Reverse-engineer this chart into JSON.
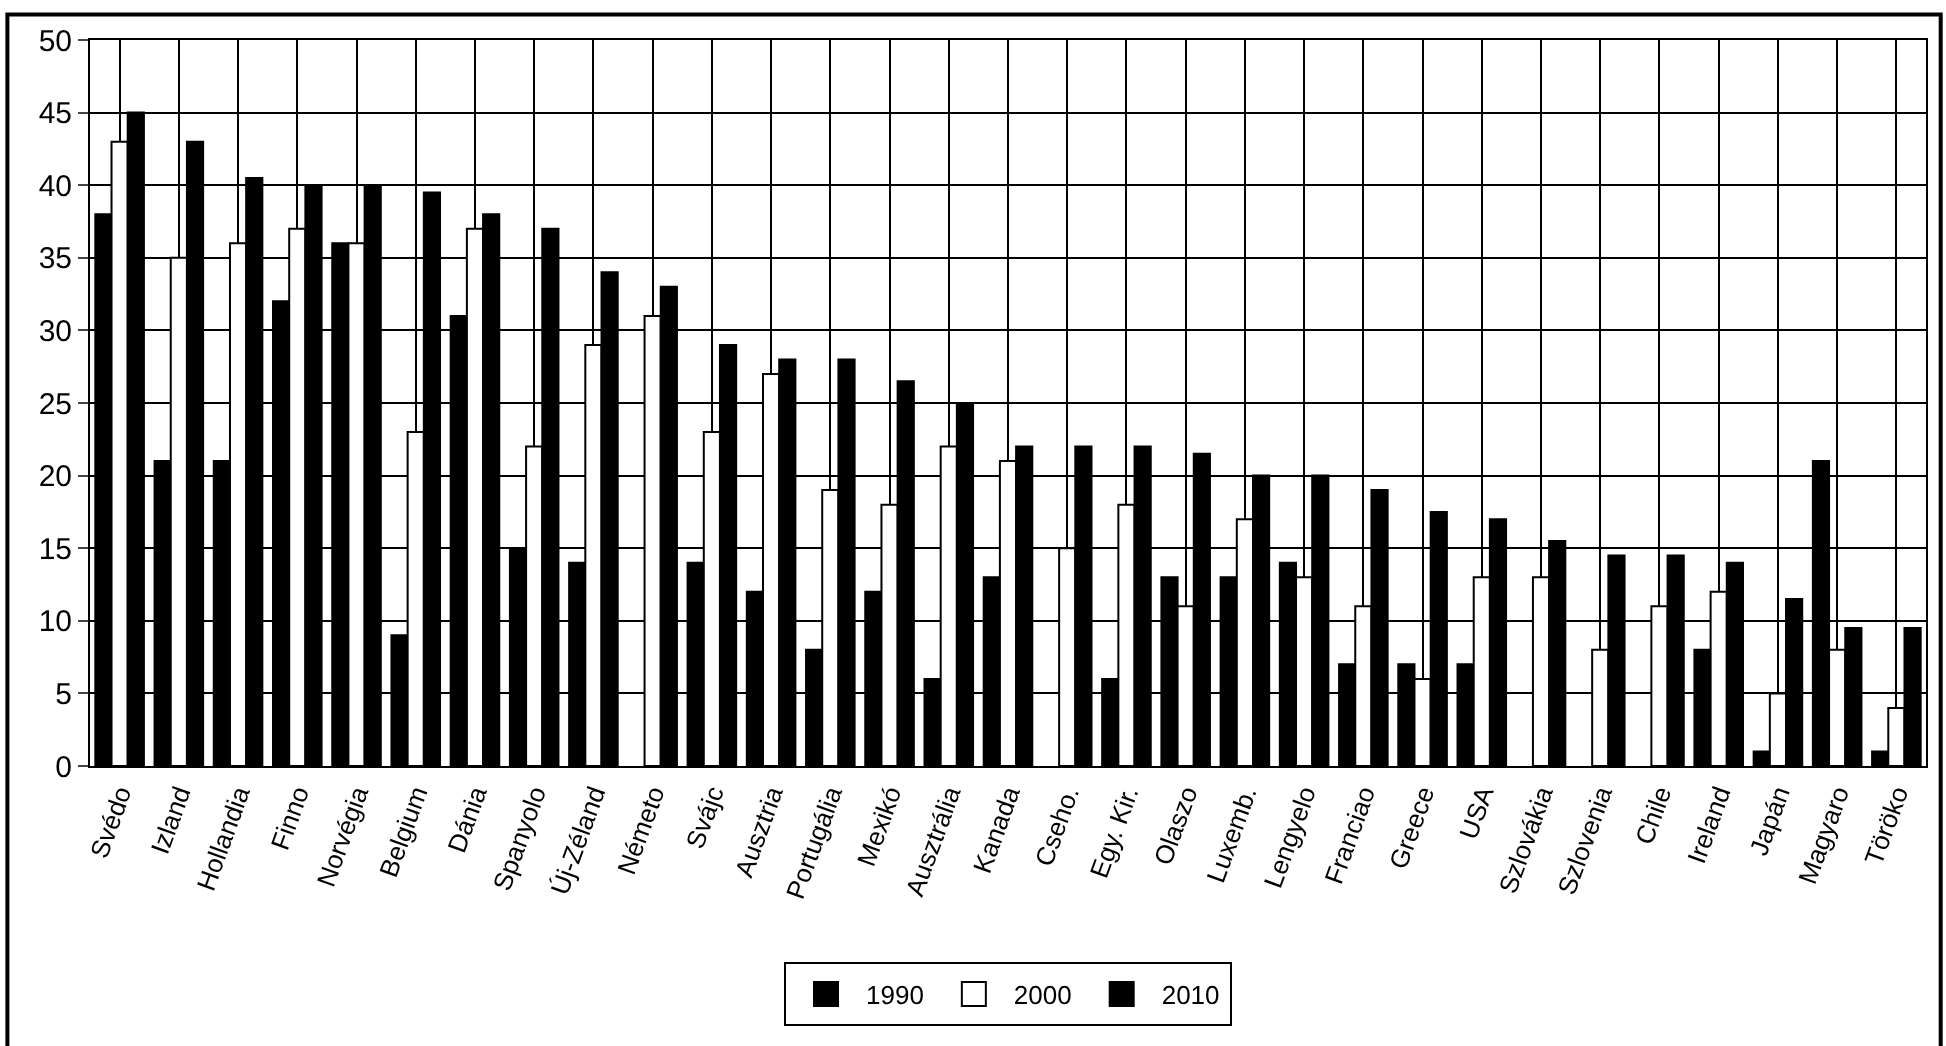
{
  "chart_data": {
    "type": "bar",
    "categories": [
      "Svédo",
      "Izland",
      "Hollandia",
      "Finno",
      "Norvégia",
      "Belgium",
      "Dánia",
      "Spanyolo",
      "Új-Zéland",
      "Németo",
      "Svájc",
      "Ausztria",
      "Portugália",
      "Mexikó",
      "Ausztrália",
      "Kanada",
      "Cseho.",
      "Egy. Kir.",
      "Olaszo",
      "Luxemb.",
      "Lengyelo",
      "Franciao",
      "Greece",
      "USA",
      "Szlovákia",
      "Szlovenia",
      "Chile",
      "Ireland",
      "Japán",
      "Magyaro",
      "Töröko"
    ],
    "series": [
      {
        "name": "1990",
        "color": "#000000",
        "values": [
          38,
          21,
          21,
          32,
          36,
          9,
          31,
          15,
          14,
          null,
          14,
          12,
          8,
          12,
          6,
          13,
          null,
          6,
          13,
          13,
          14,
          7,
          7,
          7,
          null,
          null,
          null,
          8,
          1,
          21,
          1
        ]
      },
      {
        "name": "2000",
        "color": "#ffffff",
        "values": [
          43,
          35,
          36,
          37,
          36,
          23,
          37,
          22,
          29,
          31,
          23,
          27,
          19,
          18,
          22,
          21,
          15,
          18,
          11,
          17,
          13,
          11,
          6,
          13,
          13,
          8,
          11,
          12,
          5,
          8,
          4
        ]
      },
      {
        "name": "2010",
        "color": "#000000",
        "values": [
          45,
          43,
          40.5,
          40,
          40,
          39.5,
          38,
          37,
          34,
          33,
          29,
          28,
          28,
          26.5,
          25,
          22,
          22,
          22,
          21.5,
          20,
          20,
          19,
          17.5,
          17,
          15.5,
          14.5,
          14.5,
          14,
          11.5,
          9.5,
          9.5
        ]
      }
    ],
    "ylim": [
      0,
      50
    ],
    "yticks": [
      0,
      5,
      10,
      15,
      20,
      25,
      30,
      35,
      40,
      45,
      50
    ],
    "grid": true,
    "legend": "bottom"
  }
}
